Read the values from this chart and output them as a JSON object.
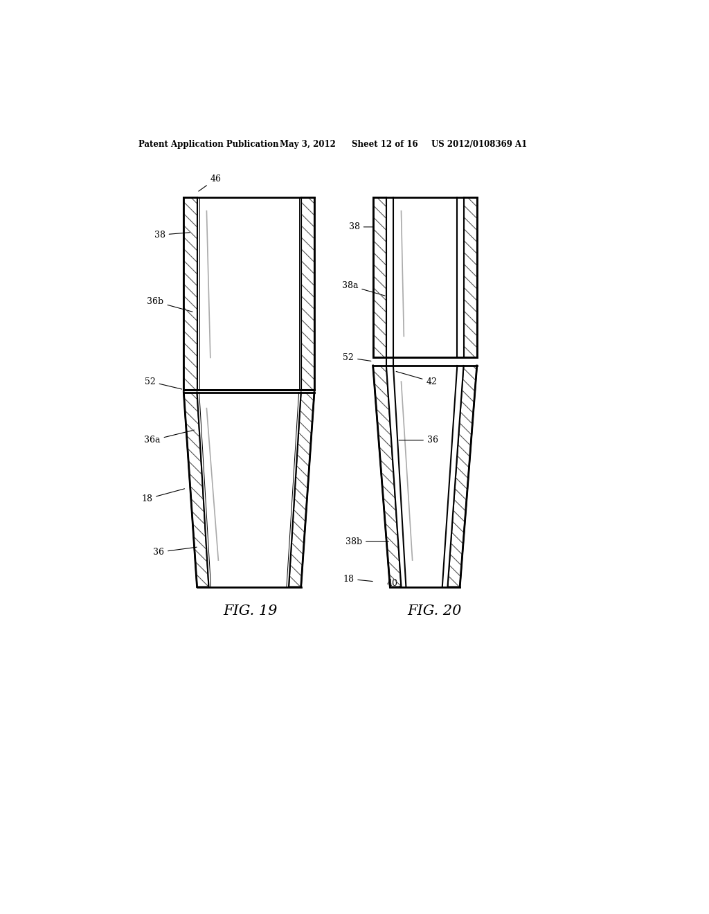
{
  "background_color": "#ffffff",
  "header_text": "Patent Application Publication",
  "header_date": "May 3, 2012",
  "header_sheet": "Sheet 12 of 16",
  "header_patent": "US 2012/0108369 A1",
  "fig19_label": "FIG. 19",
  "fig20_label": "FIG. 20",
  "line_color": "#000000",
  "hatch_color": "#555555"
}
